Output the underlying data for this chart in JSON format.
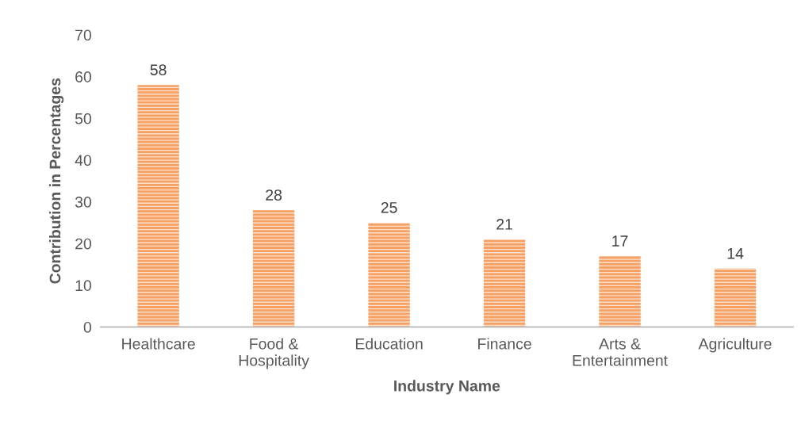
{
  "chart_data": {
    "type": "bar",
    "xlabel": "Industry Name",
    "ylabel": "Contribution in Percentages",
    "categories": [
      "Healthcare",
      "Food &\nHospitality",
      "Education",
      "Finance",
      "Arts &\nEntertainment",
      "Agriculture"
    ],
    "values": [
      58,
      28,
      25,
      21,
      17,
      14
    ],
    "color": "#f7a064",
    "ylim": [
      0,
      70
    ],
    "yticks": [
      0,
      10,
      20,
      30,
      40,
      50,
      60,
      70
    ],
    "grid": false,
    "data_labels": true,
    "legend": false
  }
}
